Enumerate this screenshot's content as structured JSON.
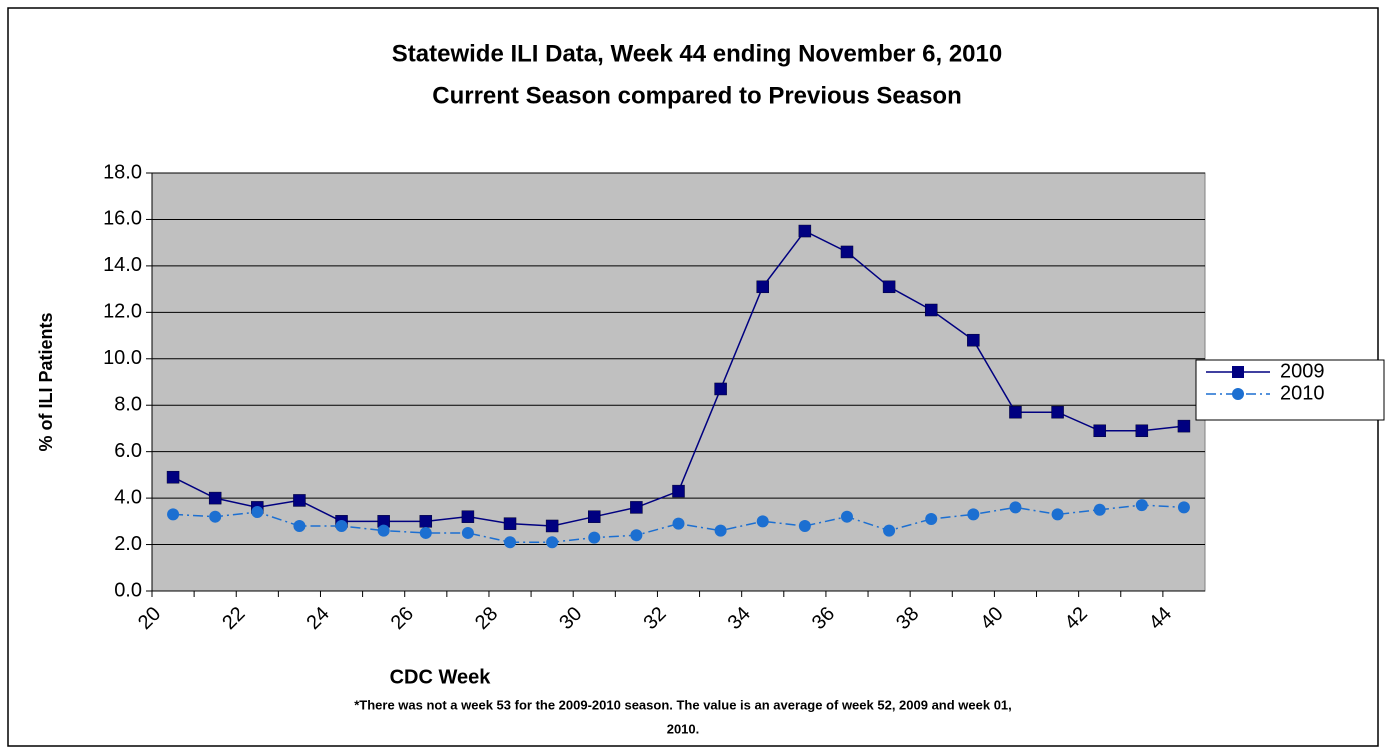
{
  "chart_data": {
    "type": "line",
    "title": [
      "Statewide ILI Data, Week 44 ending November 6, 2010",
      "Current Season compared to Previous Season"
    ],
    "xlabel": "CDC Week",
    "ylabel": "% of ILI Patients",
    "footnote": [
      "*There was not a week 53 for the 2009-2010 season. The value is an average of week 52, 2009 and week 01,",
      "2010."
    ],
    "categories": [
      20,
      null,
      22,
      null,
      24,
      null,
      26,
      null,
      28,
      null,
      30,
      null,
      32,
      null,
      34,
      null,
      36,
      null,
      38,
      null,
      40,
      null,
      42,
      null,
      44
    ],
    "series": [
      {
        "name": "2009",
        "color": "#000080",
        "marker": "square",
        "dash": "solid",
        "values": [
          4.9,
          4.0,
          3.6,
          3.9,
          3.0,
          3.0,
          3.0,
          3.2,
          2.9,
          2.8,
          3.2,
          3.6,
          4.3,
          8.7,
          13.1,
          15.5,
          14.6,
          13.1,
          12.1,
          10.8,
          7.7,
          7.7,
          6.9,
          6.9,
          7.1
        ]
      },
      {
        "name": "2010",
        "color": "#1c6fd1",
        "marker": "circle",
        "dash": "dashdot",
        "values": [
          3.3,
          3.2,
          3.4,
          2.8,
          2.8,
          2.6,
          2.5,
          2.5,
          2.1,
          2.1,
          2.3,
          2.4,
          2.9,
          2.6,
          3.0,
          2.8,
          3.2,
          2.6,
          3.1,
          3.3,
          3.6,
          3.3,
          3.5,
          3.7,
          3.6
        ]
      }
    ],
    "ylim": [
      0,
      18
    ],
    "yticks": [
      {
        "value": 0,
        "label": "0.0"
      },
      {
        "value": 2,
        "label": "2.0"
      },
      {
        "value": 4,
        "label": "4.0"
      },
      {
        "value": 6,
        "label": "6.0"
      },
      {
        "value": 8,
        "label": "8.0"
      },
      {
        "value": 10,
        "label": "10.0"
      },
      {
        "value": 12,
        "label": "12.0"
      },
      {
        "value": 14,
        "label": "14.0"
      },
      {
        "value": 16,
        "label": "16.0"
      },
      {
        "value": 18,
        "label": "18.0"
      }
    ],
    "grid": true,
    "legend": "right"
  }
}
